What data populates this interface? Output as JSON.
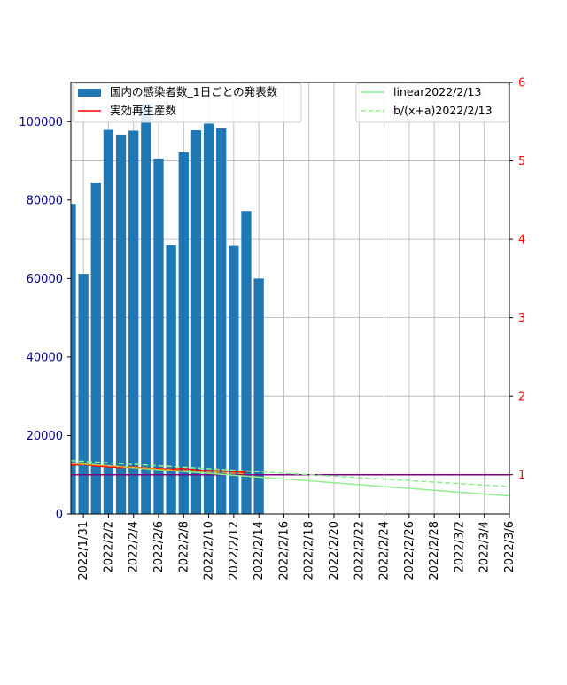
{
  "chart_data": {
    "type": "bar",
    "x_dates": [
      "2022/1/30",
      "2022/1/31",
      "2022/2/1",
      "2022/2/2",
      "2022/2/3",
      "2022/2/4",
      "2022/2/5",
      "2022/2/6",
      "2022/2/7",
      "2022/2/8",
      "2022/2/9",
      "2022/2/10",
      "2022/2/11",
      "2022/2/12",
      "2022/2/13",
      "2022/2/14",
      "2022/2/15",
      "2022/2/16",
      "2022/2/17",
      "2022/2/18",
      "2022/2/19",
      "2022/2/20",
      "2022/2/21",
      "2022/2/22",
      "2022/2/23",
      "2022/2/24",
      "2022/2/25",
      "2022/2/26",
      "2022/2/27",
      "2022/2/28",
      "2022/3/1",
      "2022/3/2",
      "2022/3/3",
      "2022/3/4",
      "2022/3/5",
      "2022/3/6"
    ],
    "x_tick_labels": [
      "2022/1/31",
      "2022/2/2",
      "2022/2/4",
      "2022/2/6",
      "2022/2/8",
      "2022/2/10",
      "2022/2/12",
      "2022/2/14",
      "2022/2/16",
      "2022/2/18",
      "2022/2/20",
      "2022/2/22",
      "2022/2/24",
      "2022/2/26",
      "2022/2/28",
      "2022/3/2",
      "2022/3/4",
      "2022/3/6"
    ],
    "bars": {
      "name": "国内の感染者数_1日ごとの発表数",
      "color": "#1f77b4",
      "dates": [
        "2022/1/30",
        "2022/1/31",
        "2022/2/1",
        "2022/2/2",
        "2022/2/3",
        "2022/2/4",
        "2022/2/5",
        "2022/2/6",
        "2022/2/7",
        "2022/2/8",
        "2022/2/9",
        "2022/2/10",
        "2022/2/11",
        "2022/2/12",
        "2022/2/13",
        "2022/2/14"
      ],
      "values": [
        79000,
        61200,
        84500,
        97900,
        96700,
        97700,
        104500,
        90600,
        68500,
        92200,
        97800,
        99500,
        98300,
        68300,
        77200,
        60000
      ]
    },
    "left_axis": {
      "ylim": [
        0,
        110000
      ],
      "ticks": [
        0,
        20000,
        40000,
        60000,
        80000,
        100000
      ],
      "color": "#000080"
    },
    "right_axis": {
      "ylim": [
        0.5,
        6
      ],
      "ticks": [
        1,
        2,
        3,
        4,
        5,
        6
      ],
      "color": "#ff0000"
    },
    "lines": [
      {
        "name": "実効再生産数",
        "color": "#ff0000",
        "style": "solid",
        "axis": "right",
        "dates": [
          "2022/1/30",
          "2022/1/31",
          "2022/2/1",
          "2022/2/2",
          "2022/2/3",
          "2022/2/4",
          "2022/2/5",
          "2022/2/6",
          "2022/2/7",
          "2022/2/8",
          "2022/2/9",
          "2022/2/10",
          "2022/2/11",
          "2022/2/12",
          "2022/2/13"
        ],
        "values": [
          1.12,
          1.13,
          1.11,
          1.1,
          1.09,
          1.1,
          1.08,
          1.08,
          1.07,
          1.08,
          1.06,
          1.05,
          1.05,
          1.04,
          1.03
        ]
      },
      {
        "name": "linear2022/2/13",
        "color": "#90ee90",
        "style": "solid",
        "axis": "right",
        "dates": [
          "2022/1/30",
          "2022/3/6"
        ],
        "values": [
          1.15,
          0.73
        ]
      },
      {
        "name": "b/(x+a)2022/2/13",
        "color": "#90ee90",
        "style": "dashed",
        "axis": "right",
        "dates": [
          "2022/1/30",
          "2022/3/6"
        ],
        "values": [
          1.18,
          0.85
        ]
      },
      {
        "name": "",
        "color": "#ff8c00",
        "style": "dashed",
        "axis": "right",
        "dates": [
          "2022/1/30",
          "2022/2/13"
        ],
        "values": [
          1.14,
          1.01
        ]
      }
    ],
    "reference_line": {
      "value": 1,
      "axis": "right",
      "color": "#800080"
    },
    "grid": true,
    "legend_left": "upper-left",
    "legend_right": "upper-right"
  }
}
